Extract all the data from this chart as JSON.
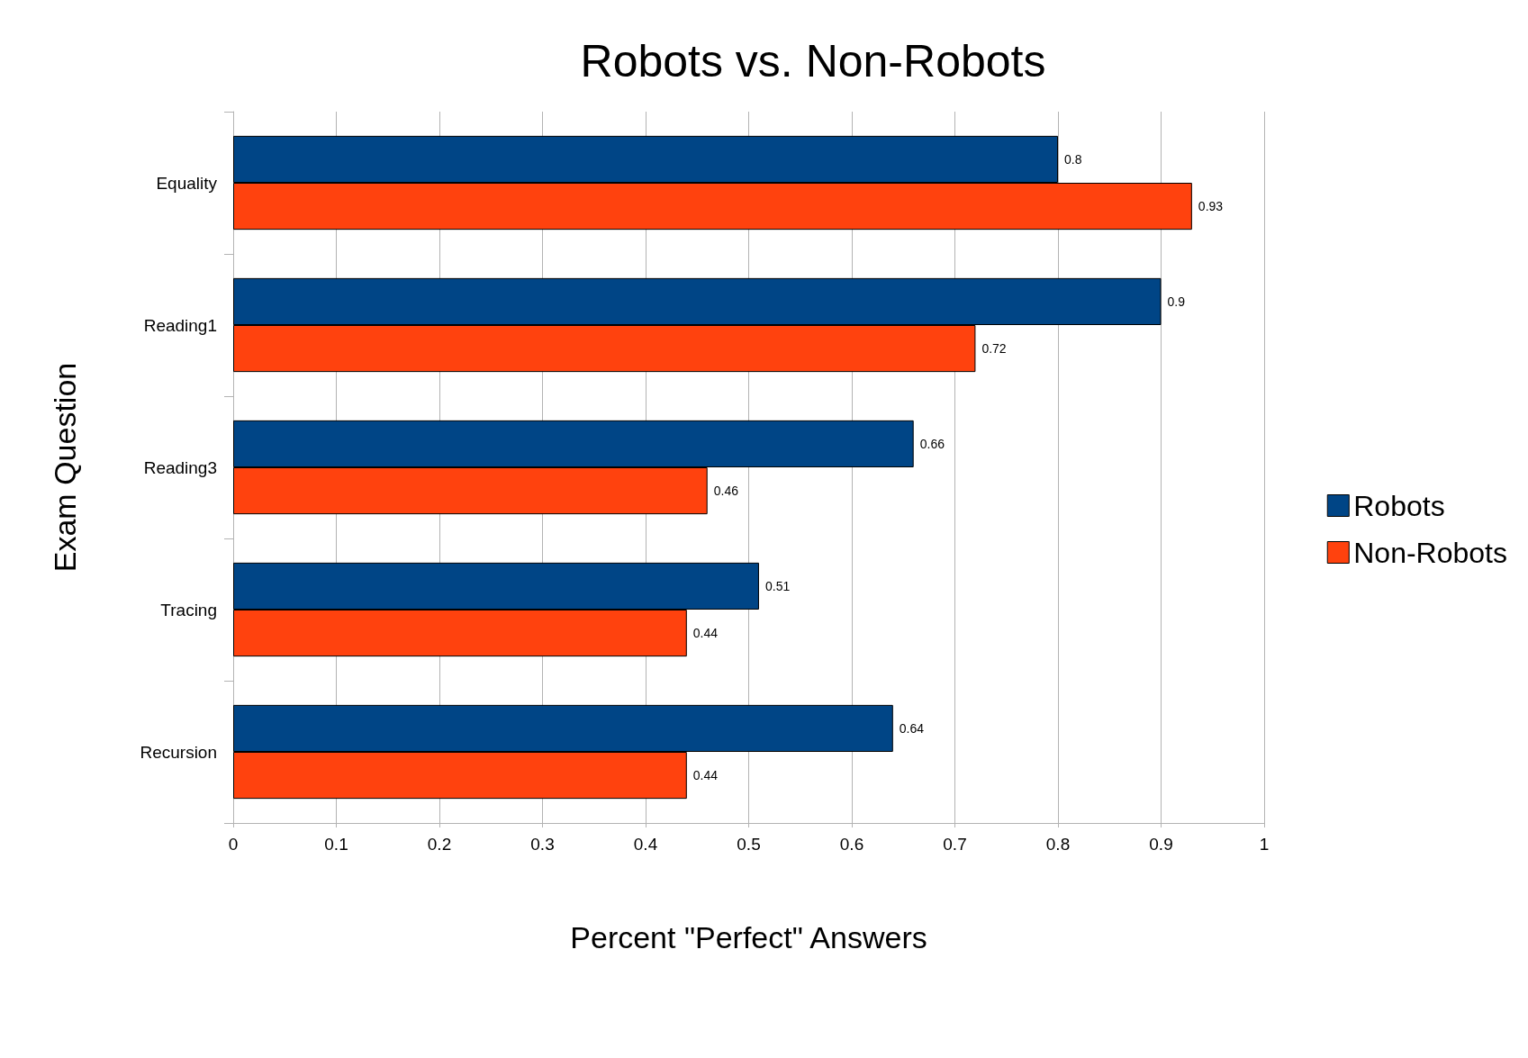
{
  "chart_data": {
    "type": "bar",
    "orientation": "horizontal",
    "title": "Robots vs. Non-Robots",
    "xlabel": "Percent \"Perfect\" Answers",
    "ylabel": "Exam Question",
    "categories": [
      "Equality",
      "Reading1",
      "Reading3",
      "Tracing",
      "Recursion"
    ],
    "series": [
      {
        "name": "Robots",
        "color": "#004586",
        "values": [
          0.8,
          0.9,
          0.66,
          0.51,
          0.64
        ]
      },
      {
        "name": "Non-Robots",
        "color": "#ff420e",
        "values": [
          0.93,
          0.72,
          0.46,
          0.44,
          0.44
        ]
      }
    ],
    "xlim": [
      0,
      1
    ],
    "xticks": [
      0,
      0.1,
      0.2,
      0.3,
      0.4,
      0.5,
      0.6,
      0.7,
      0.8,
      0.9,
      1
    ],
    "grid": "x",
    "legend": "right",
    "data_labels": true
  }
}
